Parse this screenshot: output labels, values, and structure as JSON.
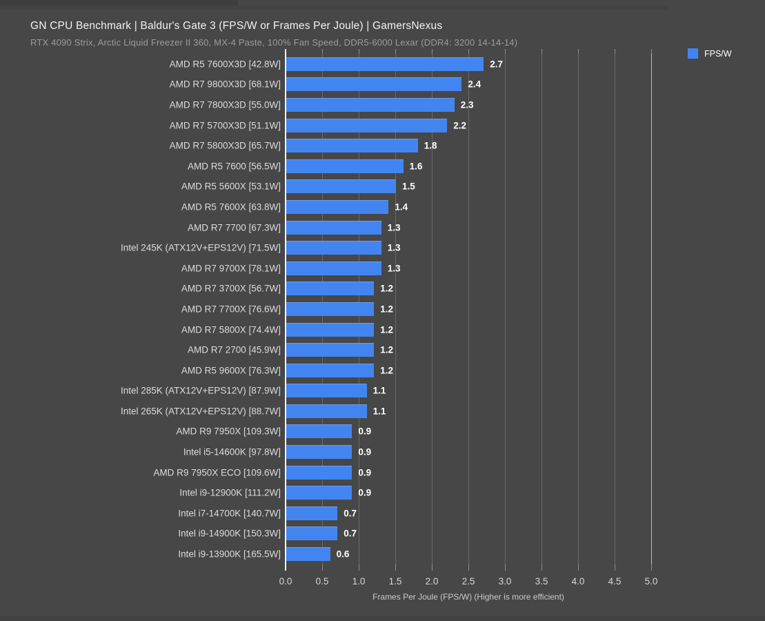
{
  "header": {
    "title": "GN CPU Benchmark | Baldur's Gate 3 (FPS/W or Frames Per Joule) | GamersNexus",
    "subtitle": "RTX 4090 Strix, Arctic Liquid Freezer II 360, MX-4 Paste, 100% Fan Speed, DDR5-6000 Lexar (DDR4: 3200 14-14-14)"
  },
  "legend": {
    "label": "FPS/W",
    "swatch_color": "#4385f0",
    "position": "top-right"
  },
  "colors": {
    "background": "#474747",
    "bar": "#4385f0",
    "gridline": "#696969",
    "zero_axis": "#f5f5f5",
    "category_text": "#dcdcdc",
    "value_text": "#ffffff"
  },
  "chart_data": {
    "type": "bar",
    "orientation": "horizontal",
    "title": "GN CPU Benchmark | Baldur's Gate 3 (FPS/W or Frames Per Joule) | GamersNexus",
    "subtitle": "RTX 4090 Strix, Arctic Liquid Freezer II 360, MX-4 Paste, 100% Fan Speed, DDR5-6000 Lexar (DDR4: 3200 14-14-14)",
    "series_name": "FPS/W",
    "categories": [
      "AMD R5 7600X3D [42.8W]",
      "AMD R7 9800X3D [68.1W]",
      "AMD R7 7800X3D [55.0W]",
      "AMD R7 5700X3D [51.1W]",
      "AMD R7 5800X3D [65.7W]",
      "AMD R5 7600 [56.5W]",
      "AMD R5 5600X [53.1W]",
      "AMD R5 7600X [63.8W]",
      "AMD R7 7700 [67.3W]",
      "Intel 245K (ATX12V+EPS12V) [71.5W]",
      "AMD R7 9700X [78.1W]",
      "AMD R7 3700X [56.7W]",
      "AMD R7 7700X [76.6W]",
      "AMD R7 5800X [74.4W]",
      "AMD R7 2700 [45.9W]",
      "AMD R5 9600X [76.3W]",
      "Intel 285K (ATX12V+EPS12V) [87.9W]",
      "Intel 265K (ATX12V+EPS12V) [88.7W]",
      "AMD R9 7950X [109.3W]",
      "Intel i5-14600K [97.8W]",
      "AMD R9 7950X ECO [109.6W]",
      "Intel i9-12900K [111.2W]",
      "Intel i7-14700K [140.7W]",
      "Intel i9-14900K [150.3W]",
      "Intel i9-13900K [165.5W]"
    ],
    "values": [
      2.7,
      2.4,
      2.3,
      2.2,
      1.8,
      1.6,
      1.5,
      1.4,
      1.3,
      1.3,
      1.3,
      1.2,
      1.2,
      1.2,
      1.2,
      1.2,
      1.1,
      1.1,
      0.9,
      0.9,
      0.9,
      0.9,
      0.7,
      0.7,
      0.6
    ],
    "value_labels": [
      "2.7",
      "2.4",
      "2.3",
      "2.2",
      "1.8",
      "1.6",
      "1.5",
      "1.4",
      "1.3",
      "1.3",
      "1.3",
      "1.2",
      "1.2",
      "1.2",
      "1.2",
      "1.2",
      "1.1",
      "1.1",
      "0.9",
      "0.9",
      "0.9",
      "0.9",
      "0.7",
      "0.7",
      "0.6"
    ],
    "xlabel": "Frames Per Joule (FPS/W) (Higher is more efficient)",
    "xlim": [
      0,
      5
    ],
    "x_tick_values": [
      0,
      0.5,
      1,
      1.5,
      2,
      2.5,
      3,
      3.5,
      4,
      4.5,
      5
    ],
    "x_tick_labels": [
      "0.0",
      "0.5",
      "1.0",
      "1.5",
      "2.0",
      "2.5",
      "3.0",
      "3.5",
      "4.0",
      "4.5",
      "5.0"
    ],
    "grid": true,
    "legend_position": "top-right"
  }
}
